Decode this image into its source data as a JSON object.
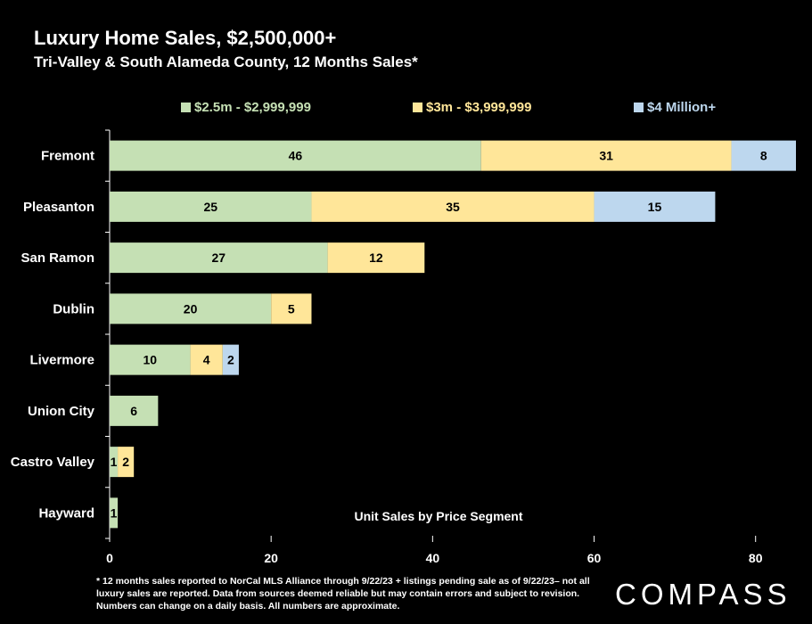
{
  "header": {
    "title": "Luxury Home Sales, $2,500,000+",
    "subtitle": "Tri-Valley & South Alameda County, 12 Months Sales*"
  },
  "colors": {
    "background": "#000000",
    "segment1": "#c5e0b4",
    "segment2": "#ffe699",
    "segment3": "#bdd7ee",
    "text": "#ffffff"
  },
  "chart_data": {
    "type": "bar",
    "orientation": "horizontal",
    "stacked": true,
    "categories": [
      "Fremont",
      "Pleasanton",
      "San Ramon",
      "Dublin",
      "Livermore",
      "Union City",
      "Castro Valley",
      "Hayward"
    ],
    "series": [
      {
        "name": "$2.5m - $2,999,999",
        "color": "#c5e0b4",
        "values": [
          46,
          25,
          27,
          20,
          10,
          6,
          1,
          1
        ]
      },
      {
        "name": "$3m - $3,999,999",
        "color": "#ffe699",
        "values": [
          31,
          35,
          12,
          5,
          4,
          0,
          2,
          0
        ]
      },
      {
        "name": "$4 Million+",
        "color": "#bdd7ee",
        "values": [
          8,
          15,
          0,
          0,
          2,
          0,
          0,
          0
        ]
      }
    ],
    "xlim": [
      0,
      85
    ],
    "xticks": [
      0,
      20,
      40,
      60,
      80
    ],
    "annotation": "Unit Sales by Price Segment",
    "legend_position": "top",
    "grid": false
  },
  "footnote": "* 12 months sales reported to NorCal MLS Alliance through 9/22/23 + listings pending sale as of 9/22/23– not all luxury sales are reported. Data from sources deemed reliable but may contain errors and subject to revision. Numbers can change on a daily basis. All numbers are approximate.",
  "logo_text": "COMPASS"
}
